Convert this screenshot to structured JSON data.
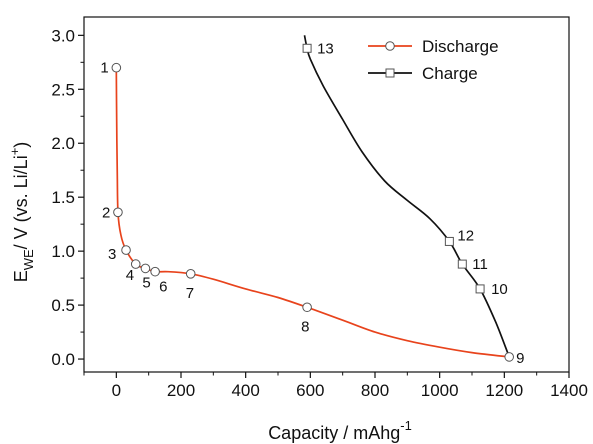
{
  "chart_data": {
    "type": "line",
    "title": "",
    "xlabel": "Capacity / mAhg",
    "xlabel_sup": "-1",
    "ylabel": {
      "e": "E",
      "we": "WE",
      "mid": "/ V (vs. Li/Li",
      "plus": "+",
      "close": ")"
    },
    "xlim": [
      -100,
      1400
    ],
    "ylim": [
      -0.12,
      3.17
    ],
    "x_ticks": [
      0,
      200,
      400,
      600,
      800,
      1000,
      1200,
      1400
    ],
    "x_tick_labels": [
      "0",
      "200",
      "400",
      "600",
      "800",
      "1000",
      "1200",
      "1400"
    ],
    "y_ticks": [
      0.0,
      0.5,
      1.0,
      1.5,
      2.0,
      2.5,
      3.0
    ],
    "y_tick_labels": [
      "0.0",
      "0.5",
      "1.0",
      "1.5",
      "2.0",
      "2.5",
      "3.0"
    ],
    "grid": false,
    "legend_position": "top-right",
    "series": [
      {
        "name": "Discharge",
        "color": "#e8431c",
        "marker": "circle",
        "curve": [
          [
            0,
            2.7
          ],
          [
            1,
            2.2
          ],
          [
            3,
            1.7
          ],
          [
            5,
            1.36
          ],
          [
            14,
            1.15
          ],
          [
            30,
            1.01
          ],
          [
            60,
            0.88
          ],
          [
            90,
            0.84
          ],
          [
            120,
            0.81
          ],
          [
            160,
            0.81
          ],
          [
            230,
            0.79
          ],
          [
            300,
            0.74
          ],
          [
            400,
            0.65
          ],
          [
            500,
            0.57
          ],
          [
            590,
            0.48
          ],
          [
            700,
            0.36
          ],
          [
            800,
            0.25
          ],
          [
            900,
            0.17
          ],
          [
            1000,
            0.11
          ],
          [
            1100,
            0.06
          ],
          [
            1215,
            0.02
          ]
        ],
        "points": [
          {
            "label": "1",
            "x": 0,
            "y": 2.7
          },
          {
            "label": "2",
            "x": 5,
            "y": 1.36
          },
          {
            "label": "3",
            "x": 30,
            "y": 1.01
          },
          {
            "label": "4",
            "x": 60,
            "y": 0.88
          },
          {
            "label": "5",
            "x": 90,
            "y": 0.84
          },
          {
            "label": "6",
            "x": 120,
            "y": 0.81
          },
          {
            "label": "7",
            "x": 230,
            "y": 0.79
          },
          {
            "label": "8",
            "x": 590,
            "y": 0.48
          },
          {
            "label": "9",
            "x": 1215,
            "y": 0.02
          }
        ]
      },
      {
        "name": "Charge",
        "color": "#111111",
        "marker": "square",
        "curve": [
          [
            1215,
            0.02
          ],
          [
            1175,
            0.33
          ],
          [
            1125,
            0.65
          ],
          [
            1070,
            0.88
          ],
          [
            1030,
            1.09
          ],
          [
            970,
            1.3
          ],
          [
            900,
            1.47
          ],
          [
            830,
            1.65
          ],
          [
            760,
            1.92
          ],
          [
            700,
            2.22
          ],
          [
            640,
            2.53
          ],
          [
            600,
            2.78
          ],
          [
            590,
            2.88
          ],
          [
            582,
            3.0
          ]
        ],
        "points": [
          {
            "label": "10",
            "x": 1125,
            "y": 0.65
          },
          {
            "label": "11",
            "x": 1070,
            "y": 0.88
          },
          {
            "label": "12",
            "x": 1030,
            "y": 1.09
          },
          {
            "label": "13",
            "x": 590,
            "y": 2.88
          }
        ]
      }
    ]
  }
}
